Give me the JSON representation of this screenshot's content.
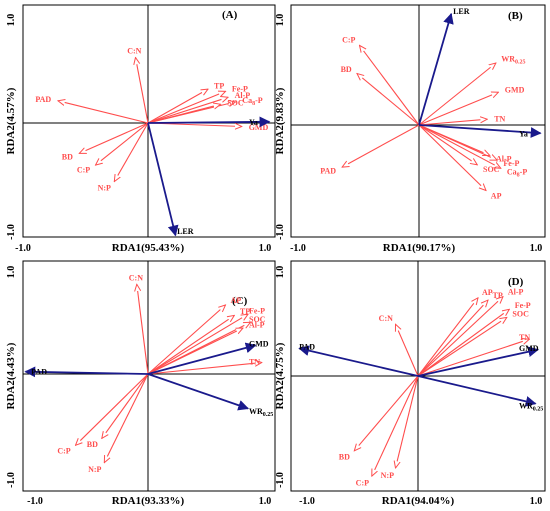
{
  "chart_data": [
    {
      "type": "scatter",
      "panel_label": "(A)",
      "xlabel": "RDA1(95.43%)",
      "ylabel": "RDA2(4.57%)",
      "xlim": [
        -1.0,
        1.0
      ],
      "ylim": [
        -1.0,
        1.0
      ],
      "x_tick_labels": [
        "-1.0",
        "1.0"
      ],
      "y_tick_labels": [
        "-1.0",
        "1.0"
      ],
      "grid": false,
      "response_vectors": [
        {
          "name": "Ya",
          "x": 0.97,
          "y": 0.01,
          "color": "#1a1a8c"
        },
        {
          "name": "LER",
          "x": 0.22,
          "y": -0.96,
          "color": "#1a1a8c"
        }
      ],
      "explanatory_vectors": [
        {
          "name": "C:N",
          "x": -0.1,
          "y": 0.56,
          "color": "#ff4d4d"
        },
        {
          "name": "PAD",
          "x": -0.72,
          "y": 0.19,
          "color": "#ff4d4d"
        },
        {
          "name": "BD",
          "x": -0.55,
          "y": -0.26,
          "color": "#ff4d4d"
        },
        {
          "name": "C:P",
          "x": -0.42,
          "y": -0.36,
          "color": "#ff4d4d"
        },
        {
          "name": "N:P",
          "x": -0.27,
          "y": -0.5,
          "color": "#ff4d4d"
        },
        {
          "name": "TP",
          "x": 0.48,
          "y": 0.29,
          "color": "#ff4d4d"
        },
        {
          "name": "Fe-P",
          "x": 0.62,
          "y": 0.27,
          "color": "#ff4d4d"
        },
        {
          "name": "Al-P",
          "x": 0.64,
          "y": 0.22,
          "color": "#ff4d4d"
        },
        {
          "name": "Ca8-P",
          "x": 0.7,
          "y": 0.18,
          "color": "#ff4d4d"
        },
        {
          "name": "SOC",
          "x": 0.58,
          "y": 0.16,
          "color": "#ff4d4d"
        },
        {
          "name": "GMD",
          "x": 0.75,
          "y": -0.03,
          "color": "#ff4d4d"
        }
      ]
    },
    {
      "type": "scatter",
      "panel_label": "(B)",
      "xlabel": "RDA1(90.17%)",
      "ylabel": "RDA2(9.83%)",
      "xlim": [
        -1.0,
        1.0
      ],
      "ylim": [
        -1.0,
        1.0
      ],
      "x_tick_labels": [
        "-1.0",
        "1.0"
      ],
      "y_tick_labels": [
        "-1.0",
        "1.0"
      ],
      "grid": false,
      "response_vectors": [
        {
          "name": "LER",
          "x": 0.26,
          "y": 0.95,
          "color": "#1a1a8c"
        },
        {
          "name": "Ya",
          "x": 0.98,
          "y": -0.07,
          "color": "#1a1a8c"
        }
      ],
      "explanatory_vectors": [
        {
          "name": "C:P",
          "x": -0.48,
          "y": 0.68,
          "color": "#ff4d4d"
        },
        {
          "name": "BD",
          "x": -0.5,
          "y": 0.44,
          "color": "#ff4d4d"
        },
        {
          "name": "WR0.25",
          "x": 0.62,
          "y": 0.53,
          "color": "#ff4d4d"
        },
        {
          "name": "GMD",
          "x": 0.64,
          "y": 0.28,
          "color": "#ff4d4d"
        },
        {
          "name": "TN",
          "x": 0.55,
          "y": 0.05,
          "color": "#ff4d4d"
        },
        {
          "name": "PAD",
          "x": -0.62,
          "y": -0.36,
          "color": "#ff4d4d"
        },
        {
          "name": "Al-P",
          "x": 0.57,
          "y": -0.26,
          "color": "#ff4d4d"
        },
        {
          "name": "Fe-P",
          "x": 0.63,
          "y": -0.3,
          "color": "#ff4d4d"
        },
        {
          "name": "Ca8-P",
          "x": 0.66,
          "y": -0.37,
          "color": "#ff4d4d"
        },
        {
          "name": "SOC",
          "x": 0.47,
          "y": -0.34,
          "color": "#ff4d4d"
        },
        {
          "name": "AP",
          "x": 0.54,
          "y": -0.56,
          "color": "#ff4d4d"
        }
      ]
    },
    {
      "type": "scatter",
      "panel_label": "(C)",
      "xlabel": "RDA1(93.33%)",
      "ylabel": "RDA2(4.43%)",
      "xlim": [
        -1.0,
        1.0
      ],
      "ylim": [
        -1.0,
        1.0
      ],
      "x_tick_labels": [
        "-1.0",
        "1.0"
      ],
      "y_tick_labels": [
        "1.0",
        "-1.0"
      ],
      "grid": false,
      "response_vectors": [
        {
          "name": "GMD",
          "x": 0.86,
          "y": 0.25,
          "color": "#1a1a8c"
        },
        {
          "name": "PAD",
          "x": -0.98,
          "y": 0.02,
          "color": "#1a1a8c"
        },
        {
          "name": "WR0.25",
          "x": 0.8,
          "y": -0.3,
          "color": "#1a1a8c"
        }
      ],
      "explanatory_vectors": [
        {
          "name": "C:N",
          "x": -0.09,
          "y": 0.78,
          "color": "#ff4d4d"
        },
        {
          "name": "AP",
          "x": 0.62,
          "y": 0.6,
          "color": "#ff4d4d"
        },
        {
          "name": "TP",
          "x": 0.69,
          "y": 0.51,
          "color": "#ff4d4d"
        },
        {
          "name": "Fe-P",
          "x": 0.8,
          "y": 0.52,
          "color": "#ff4d4d"
        },
        {
          "name": "SOC",
          "x": 0.82,
          "y": 0.45,
          "color": "#ff4d4d"
        },
        {
          "name": "Al-P",
          "x": 0.76,
          "y": 0.4,
          "color": "#ff4d4d"
        },
        {
          "name": "TN",
          "x": 0.91,
          "y": 0.1,
          "color": "#ff4d4d"
        },
        {
          "name": "C:P",
          "x": -0.58,
          "y": -0.62,
          "color": "#ff4d4d"
        },
        {
          "name": "BD",
          "x": -0.37,
          "y": -0.56,
          "color": "#ff4d4d"
        },
        {
          "name": "N:P",
          "x": -0.35,
          "y": -0.77,
          "color": "#ff4d4d"
        }
      ]
    },
    {
      "type": "scatter",
      "panel_label": "(D)",
      "xlabel": "RDA1(94.04%)",
      "ylabel": "RDA2(4.75%)",
      "xlim": [
        -1.0,
        1.0
      ],
      "ylim": [
        -1.0,
        1.0
      ],
      "x_tick_labels": [
        "-1.0",
        "1.0"
      ],
      "y_tick_labels": [
        "1.0",
        "-1.0"
      ],
      "grid": false,
      "response_vectors": [
        {
          "name": "GMD",
          "x": 0.96,
          "y": 0.23,
          "color": "#1a1a8c"
        },
        {
          "name": "PAD",
          "x": -0.95,
          "y": 0.24,
          "color": "#1a1a8c"
        },
        {
          "name": "WR0.25",
          "x": 0.94,
          "y": -0.24,
          "color": "#1a1a8c"
        }
      ],
      "explanatory_vectors": [
        {
          "name": "C:N",
          "x": -0.18,
          "y": 0.45,
          "color": "#ff4d4d"
        },
        {
          "name": "AP",
          "x": 0.48,
          "y": 0.68,
          "color": "#ff4d4d"
        },
        {
          "name": "TP",
          "x": 0.56,
          "y": 0.66,
          "color": "#ff4d4d"
        },
        {
          "name": "Al-P",
          "x": 0.68,
          "y": 0.69,
          "color": "#ff4d4d"
        },
        {
          "name": "Fe-P",
          "x": 0.73,
          "y": 0.58,
          "color": "#ff4d4d"
        },
        {
          "name": "SOC",
          "x": 0.71,
          "y": 0.51,
          "color": "#ff4d4d"
        },
        {
          "name": "TN",
          "x": 0.89,
          "y": 0.32,
          "color": "#ff4d4d"
        },
        {
          "name": "BD",
          "x": -0.51,
          "y": -0.65,
          "color": "#ff4d4d"
        },
        {
          "name": "C:P",
          "x": -0.37,
          "y": -0.87,
          "color": "#ff4d4d"
        },
        {
          "name": "N:P",
          "x": -0.18,
          "y": -0.8,
          "color": "#ff4d4d"
        }
      ]
    }
  ]
}
